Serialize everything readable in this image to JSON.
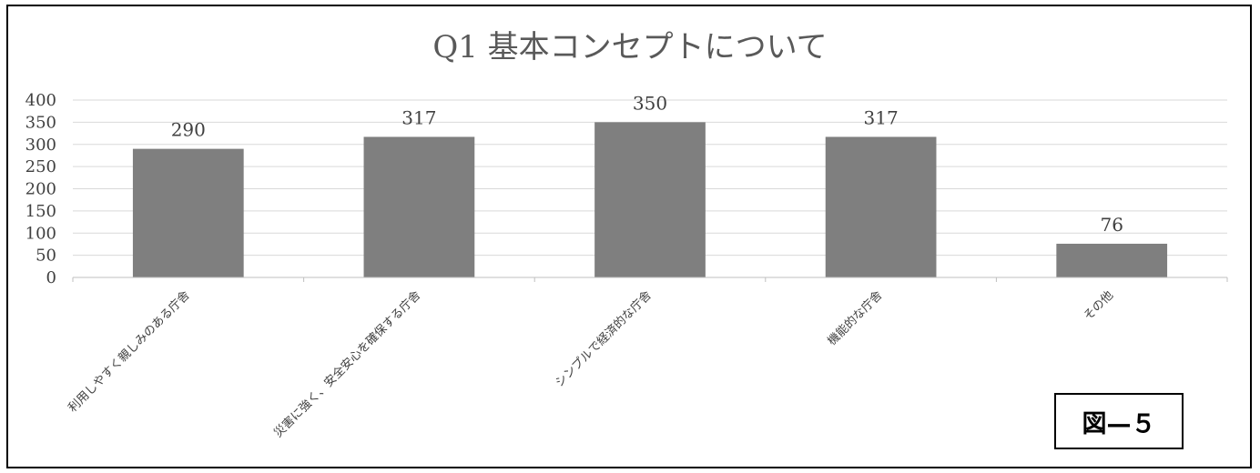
{
  "figure_label": "図—５",
  "chart_data": {
    "type": "bar",
    "title": "Q1 基本コンセプトについて",
    "categories": [
      "利用しやすく親しみのある庁舎",
      "災害に強く、安全安心を確保する庁舎",
      "シンプルで経済的な庁舎",
      "機能的な庁舎",
      "その他"
    ],
    "values": [
      290,
      317,
      350,
      317,
      76
    ],
    "xlabel": "",
    "ylabel": "",
    "ylim": [
      0,
      400
    ],
    "yticks": [
      0,
      50,
      100,
      150,
      200,
      250,
      300,
      350,
      400
    ],
    "grid": true,
    "bar_color": "#7f7f7f",
    "grid_color": "#d9d9d9",
    "data_labels": true
  }
}
